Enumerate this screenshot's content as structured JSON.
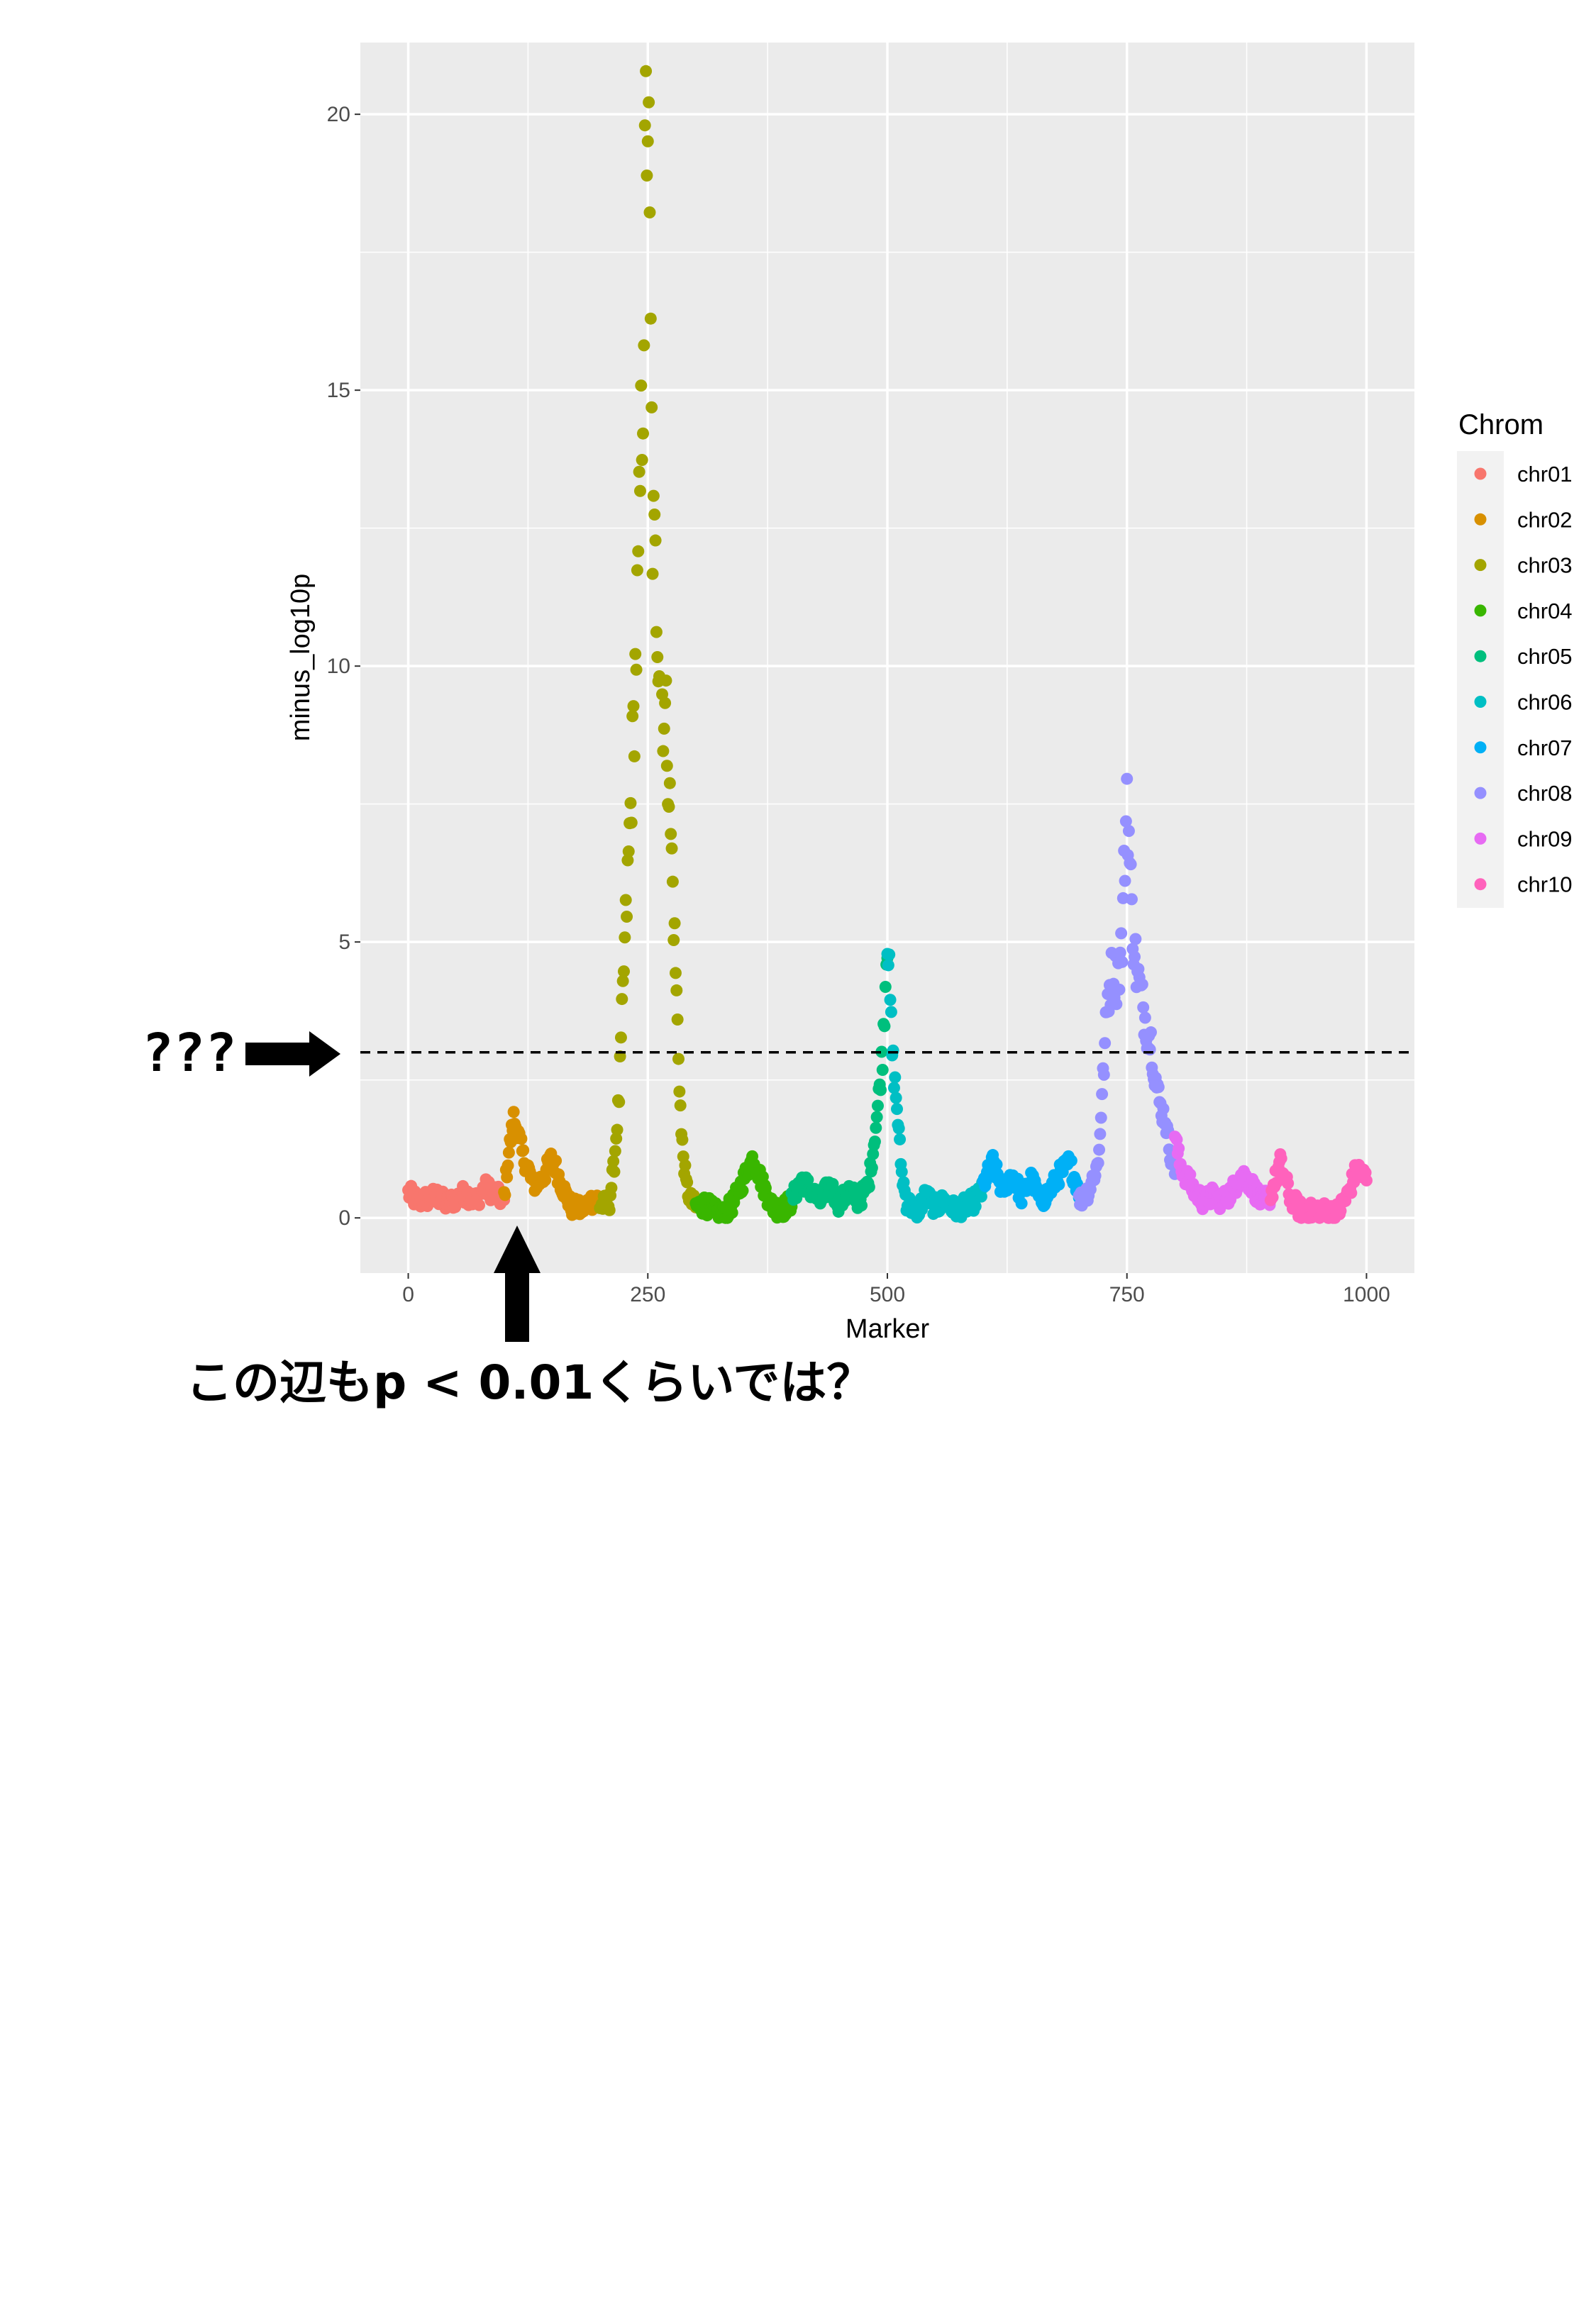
{
  "chart_data": {
    "type": "scatter",
    "title": "",
    "xlabel": "Marker",
    "ylabel": "minus_log10p",
    "xlim": [
      -50,
      1050
    ],
    "ylim": [
      -1,
      21.3
    ],
    "x_ticks": [
      0,
      250,
      500,
      750,
      1000
    ],
    "x_tick_labels": [
      "0",
      "250",
      "500",
      "750",
      "1000"
    ],
    "y_ticks": [
      0,
      5,
      10,
      15,
      20
    ],
    "y_tick_labels": [
      "0",
      "5",
      "10",
      "15",
      "20"
    ],
    "grid": true,
    "panel_background": "#ebebeb",
    "threshold_line": {
      "y": 3,
      "style": "dashed",
      "color": "#000000"
    },
    "legend": {
      "title": "Chrom",
      "position": "right",
      "entries": [
        {
          "name": "chr01",
          "color": "#F8766D"
        },
        {
          "name": "chr02",
          "color": "#D89000"
        },
        {
          "name": "chr03",
          "color": "#A3A500"
        },
        {
          "name": "chr04",
          "color": "#39B600"
        },
        {
          "name": "chr05",
          "color": "#00BF7D"
        },
        {
          "name": "chr06",
          "color": "#00BFC4"
        },
        {
          "name": "chr07",
          "color": "#00B0F6"
        },
        {
          "name": "chr08",
          "color": "#9590FF"
        },
        {
          "name": "chr09",
          "color": "#E76BF3"
        },
        {
          "name": "chr10",
          "color": "#FF62BC"
        }
      ]
    },
    "series": [
      {
        "name": "chr01",
        "x_range": [
          0,
          100
        ],
        "profile": [
          [
            0,
            0.45
          ],
          [
            10,
            0.3
          ],
          [
            20,
            0.35
          ],
          [
            30,
            0.4
          ],
          [
            40,
            0.25
          ],
          [
            50,
            0.35
          ],
          [
            60,
            0.45
          ],
          [
            70,
            0.3
          ],
          [
            80,
            0.55
          ],
          [
            90,
            0.45
          ],
          [
            100,
            0.3
          ]
        ]
      },
      {
        "name": "chr02",
        "x_range": [
          100,
          200
        ],
        "profile": [
          [
            100,
            0.4
          ],
          [
            105,
            1.2
          ],
          [
            110,
            1.8
          ],
          [
            115,
            1.5
          ],
          [
            120,
            1.1
          ],
          [
            125,
            0.9
          ],
          [
            130,
            0.6
          ],
          [
            140,
            0.7
          ],
          [
            150,
            1.1
          ],
          [
            160,
            0.6
          ],
          [
            170,
            0.2
          ],
          [
            180,
            0.15
          ],
          [
            190,
            0.3
          ],
          [
            200,
            0.35
          ]
        ]
      },
      {
        "name": "chr03",
        "x_range": [
          200,
          300
        ],
        "profile": [
          [
            200,
            0.2
          ],
          [
            210,
            0.3
          ],
          [
            215,
            1.0
          ],
          [
            220,
            2.2
          ],
          [
            225,
            4.5
          ],
          [
            230,
            6.5
          ],
          [
            235,
            8.8
          ],
          [
            240,
            11.5
          ],
          [
            245,
            15.5
          ],
          [
            248,
            19.5
          ],
          [
            250,
            20.3
          ],
          [
            255,
            12.5
          ],
          [
            260,
            11.0
          ],
          [
            265,
            9.5
          ],
          [
            270,
            8.8
          ],
          [
            275,
            6.5
          ],
          [
            280,
            4.0
          ],
          [
            285,
            1.5
          ],
          [
            290,
            0.6
          ],
          [
            295,
            0.3
          ],
          [
            300,
            0.2
          ]
        ]
      },
      {
        "name": "chr04",
        "x_range": [
          300,
          400
        ],
        "profile": [
          [
            300,
            0.2
          ],
          [
            310,
            0.25
          ],
          [
            320,
            0.1
          ],
          [
            330,
            0.05
          ],
          [
            340,
            0.3
          ],
          [
            350,
            0.7
          ],
          [
            360,
            1.1
          ],
          [
            370,
            0.6
          ],
          [
            380,
            0.2
          ],
          [
            390,
            0.15
          ],
          [
            400,
            0.3
          ]
        ]
      },
      {
        "name": "chr05",
        "x_range": [
          400,
          500
        ],
        "profile": [
          [
            400,
            0.3
          ],
          [
            410,
            0.7
          ],
          [
            420,
            0.5
          ],
          [
            430,
            0.3
          ],
          [
            440,
            0.6
          ],
          [
            450,
            0.25
          ],
          [
            460,
            0.5
          ],
          [
            470,
            0.3
          ],
          [
            480,
            0.6
          ],
          [
            485,
            1.2
          ],
          [
            490,
            2.0
          ],
          [
            495,
            3.0
          ],
          [
            500,
            5.2
          ]
        ]
      },
      {
        "name": "chr06",
        "x_range": [
          500,
          600
        ],
        "profile": [
          [
            500,
            5.2
          ],
          [
            505,
            3.0
          ],
          [
            510,
            2.0
          ],
          [
            515,
            0.8
          ],
          [
            520,
            0.3
          ],
          [
            530,
            0.1
          ],
          [
            540,
            0.4
          ],
          [
            550,
            0.2
          ],
          [
            560,
            0.3
          ],
          [
            570,
            0.15
          ],
          [
            580,
            0.2
          ],
          [
            590,
            0.3
          ],
          [
            600,
            0.5
          ]
        ]
      },
      {
        "name": "chr07",
        "x_range": [
          600,
          700
        ],
        "profile": [
          [
            600,
            0.6
          ],
          [
            610,
            1.0
          ],
          [
            620,
            0.5
          ],
          [
            630,
            0.8
          ],
          [
            640,
            0.4
          ],
          [
            650,
            0.7
          ],
          [
            660,
            0.3
          ],
          [
            670,
            0.5
          ],
          [
            680,
            0.8
          ],
          [
            690,
            1.0
          ],
          [
            700,
            0.5
          ]
        ]
      },
      {
        "name": "chr08",
        "x_range": [
          700,
          800
        ],
        "profile": [
          [
            700,
            0.3
          ],
          [
            710,
            0.5
          ],
          [
            720,
            1.0
          ],
          [
            725,
            2.5
          ],
          [
            730,
            4.0
          ],
          [
            735,
            4.5
          ],
          [
            740,
            4.3
          ],
          [
            745,
            5.0
          ],
          [
            750,
            7.8
          ],
          [
            755,
            5.5
          ],
          [
            760,
            4.5
          ],
          [
            765,
            4.0
          ],
          [
            770,
            3.5
          ],
          [
            775,
            3.2
          ],
          [
            780,
            2.5
          ],
          [
            785,
            2.0
          ],
          [
            790,
            1.8
          ],
          [
            795,
            1.2
          ],
          [
            800,
            0.9
          ]
        ]
      },
      {
        "name": "chr09",
        "x_range": [
          800,
          900
        ],
        "profile": [
          [
            800,
            1.5
          ],
          [
            805,
            1.0
          ],
          [
            810,
            0.8
          ],
          [
            820,
            0.5
          ],
          [
            830,
            0.3
          ],
          [
            840,
            0.4
          ],
          [
            850,
            0.3
          ],
          [
            860,
            0.5
          ],
          [
            870,
            0.8
          ],
          [
            880,
            0.6
          ],
          [
            890,
            0.3
          ],
          [
            900,
            0.4
          ]
        ]
      },
      {
        "name": "chr10",
        "x_range": [
          900,
          1000
        ],
        "profile": [
          [
            900,
            0.4
          ],
          [
            910,
            1.0
          ],
          [
            920,
            0.4
          ],
          [
            930,
            0.15
          ],
          [
            940,
            0.1
          ],
          [
            950,
            0.15
          ],
          [
            960,
            0.1
          ],
          [
            970,
            0.1
          ],
          [
            980,
            0.4
          ],
          [
            990,
            0.9
          ],
          [
            1000,
            0.7
          ]
        ]
      }
    ],
    "annotations": [
      {
        "text": "???",
        "target": "threshold-line"
      },
      {
        "text": "この辺もp < 0.01くらいでは？",
        "target": "chr02-peak"
      }
    ]
  }
}
